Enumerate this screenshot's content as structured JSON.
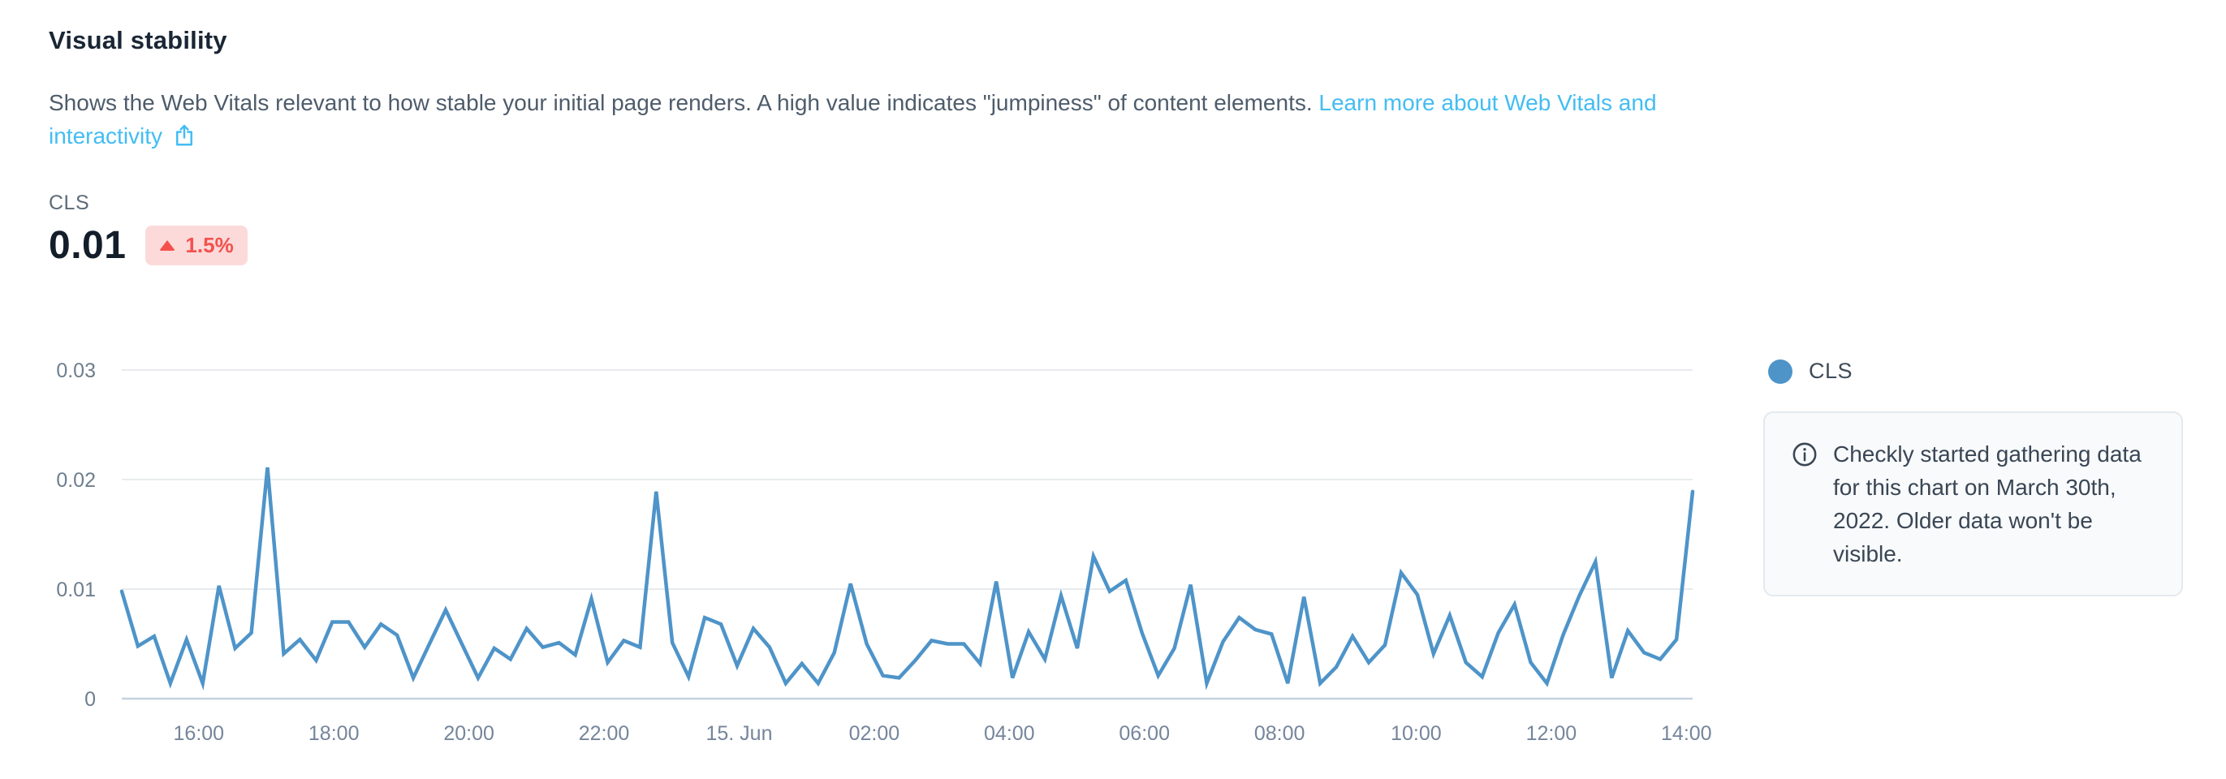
{
  "header": {
    "title": "Visual stability",
    "description": "Shows the Web Vitals relevant to how stable your initial page renders. A high value indicates \"jumpiness\" of content elements. ",
    "link_label": "Learn more about Web Vitals and interactivity"
  },
  "metric": {
    "label": "CLS",
    "value": "0.01",
    "trend": "1.5%",
    "trend_direction": "up"
  },
  "legend": {
    "label": "CLS"
  },
  "info_box": {
    "text": "Checkly started gathering data for this chart on March 30th, 2022. Older data won't be visible."
  },
  "colors": {
    "accent_link": "#43bdf2",
    "line": "#4e94c9",
    "badge_bg": "#fcdada",
    "badge_text": "#f4514d",
    "grid": "#e8ebee",
    "zero_line": "#c5d1e0",
    "axis_text": "#6e7e8e",
    "title_text": "#1a2634",
    "body_text": "#4e5c6b",
    "info_bg": "#f8fafc",
    "info_border": "#e4e9ee"
  },
  "chart_data": {
    "type": "line",
    "title": "",
    "xlabel": "",
    "ylabel": "",
    "ylim": [
      0,
      0.032
    ],
    "grid": "horizontal",
    "legend_position": "right",
    "y_ticks": [
      {
        "label": "0",
        "v": 0
      },
      {
        "label": "0.01",
        "v": 0.01
      },
      {
        "label": "0.02",
        "v": 0.02
      },
      {
        "label": "0.03",
        "v": 0.03
      }
    ],
    "x_ticks": [
      {
        "label": "16:00",
        "f": 0.049
      },
      {
        "label": "18:00",
        "f": 0.135
      },
      {
        "label": "20:00",
        "f": 0.221
      },
      {
        "label": "22:00",
        "f": 0.307
      },
      {
        "label": "15. Jun",
        "f": 0.393
      },
      {
        "label": "02:00",
        "f": 0.479
      },
      {
        "label": "04:00",
        "f": 0.565
      },
      {
        "label": "06:00",
        "f": 0.651
      },
      {
        "label": "08:00",
        "f": 0.737
      },
      {
        "label": "10:00",
        "f": 0.824
      },
      {
        "label": "12:00",
        "f": 0.91
      },
      {
        "label": "14:00",
        "f": 0.996
      }
    ],
    "series": [
      {
        "name": "CLS",
        "color": "#4e94c9",
        "values": [
          0.0098,
          0.0048,
          0.0057,
          0.0014,
          0.0054,
          0.0014,
          0.0103,
          0.0046,
          0.006,
          0.0211,
          0.0041,
          0.0054,
          0.0035,
          0.007,
          0.007,
          0.0047,
          0.0068,
          0.0058,
          0.0019,
          0.005,
          0.0081,
          0.005,
          0.0019,
          0.0046,
          0.0036,
          0.0064,
          0.0047,
          0.0051,
          0.004,
          0.0091,
          0.0033,
          0.0053,
          0.0047,
          0.0189,
          0.0051,
          0.002,
          0.0074,
          0.0068,
          0.003,
          0.0064,
          0.0047,
          0.0014,
          0.0032,
          0.0014,
          0.0042,
          0.0105,
          0.005,
          0.0021,
          0.0019,
          0.0035,
          0.0053,
          0.005,
          0.005,
          0.0032,
          0.0107,
          0.0019,
          0.0061,
          0.0036,
          0.0094,
          0.0046,
          0.013,
          0.0098,
          0.0108,
          0.006,
          0.0021,
          0.0046,
          0.0104,
          0.0014,
          0.0052,
          0.0074,
          0.0063,
          0.0059,
          0.0014,
          0.0093,
          0.0014,
          0.0029,
          0.0057,
          0.0033,
          0.0049,
          0.0115,
          0.0095,
          0.0041,
          0.0076,
          0.0033,
          0.002,
          0.006,
          0.0086,
          0.0033,
          0.0014,
          0.0058,
          0.0094,
          0.0125,
          0.0019,
          0.0062,
          0.0042,
          0.0036,
          0.0054,
          0.0189
        ]
      }
    ]
  }
}
